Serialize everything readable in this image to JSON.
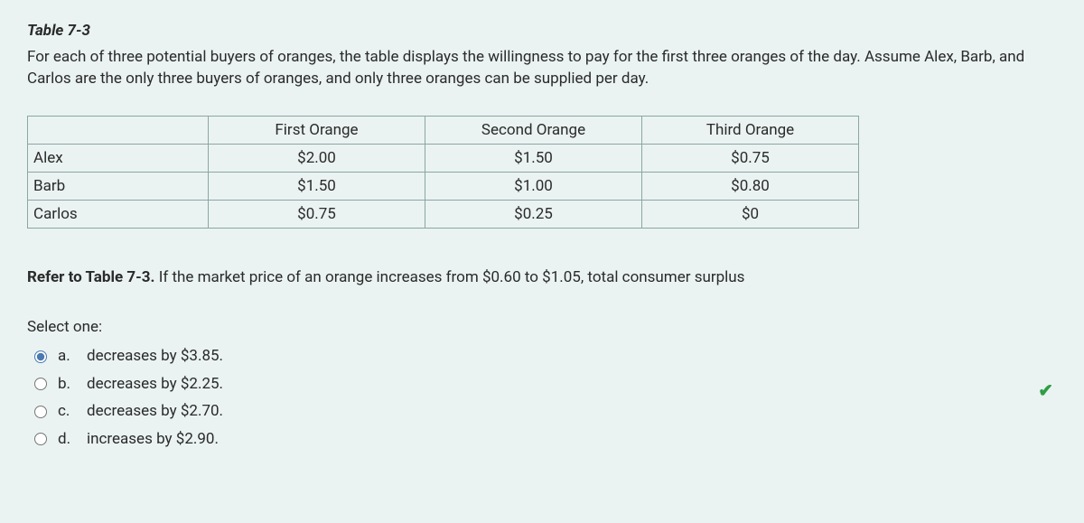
{
  "title": "Table 7-3",
  "intro": "For each of three potential buyers of oranges, the table displays the willingness to pay for the first three oranges of the day. Assume Alex, Barb, and Carlos are the only three buyers of oranges, and only three oranges can be supplied per day.",
  "table": {
    "columns": [
      "",
      "First Orange",
      "Second Orange",
      "Third Orange"
    ],
    "rows": [
      {
        "name": "Alex",
        "c1": "$2.00",
        "c2": "$1.50",
        "c3": "$0.75"
      },
      {
        "name": "Barb",
        "c1": "$1.50",
        "c2": "$1.00",
        "c3": "$0.80"
      },
      {
        "name": "Carlos",
        "c1": "$0.75",
        "c2": "$0.25",
        "c3": "$0"
      }
    ],
    "border_color": "#8aa6a3",
    "cell_fontsize": 17
  },
  "question": {
    "lead": "Refer to Table 7-3.",
    "text": " If the market price of an orange increases from $0.60 to $1.05, total consumer surplus"
  },
  "select_label": "Select one:",
  "options": {
    "a": {
      "letter": "a.",
      "text": "decreases by $3.85."
    },
    "b": {
      "letter": "b.",
      "text": "decreases by $2.25."
    },
    "c": {
      "letter": "c.",
      "text": "decreases by $2.70."
    },
    "d": {
      "letter": "d.",
      "text": "increases by $2.90."
    }
  },
  "selected": "a",
  "correct_indicator": "✔",
  "colors": {
    "background": "#eaf3f2",
    "text": "#2a2a2a",
    "correct": "#2e9e44"
  }
}
